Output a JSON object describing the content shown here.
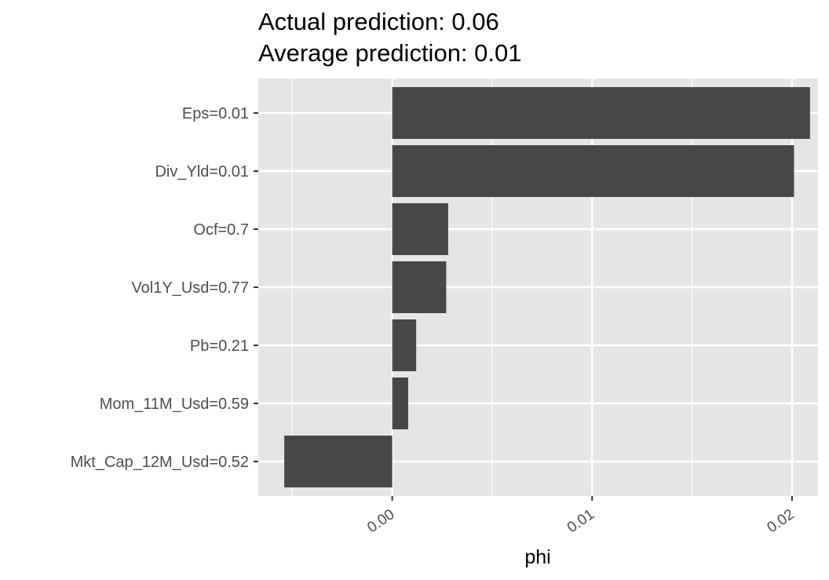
{
  "chart_data": {
    "type": "bar",
    "orientation": "horizontal",
    "title_lines": [
      "Actual prediction: 0.06",
      "Average prediction: 0.01"
    ],
    "xlabel": "phi",
    "ylabel": "",
    "categories": [
      "Eps=0.01",
      "Div_Yld=0.01",
      "Ocf=0.7",
      "Vol1Y_Usd=0.77",
      "Pb=0.21",
      "Mom_11M_Usd=0.59",
      "Mkt_Cap_12M_Usd=0.52"
    ],
    "values": [
      0.0209,
      0.0201,
      0.0028,
      0.0027,
      0.0012,
      0.0008,
      -0.0054
    ],
    "xlim": [
      -0.0067,
      0.0213
    ],
    "xticks": [
      0.0,
      0.01,
      0.02
    ],
    "xtick_labels": [
      "0.00",
      "0.01",
      "0.02"
    ],
    "grid": true,
    "bar_color": "#474747",
    "panel_background": "#e5e5e5",
    "grid_color": "#ffffff"
  }
}
